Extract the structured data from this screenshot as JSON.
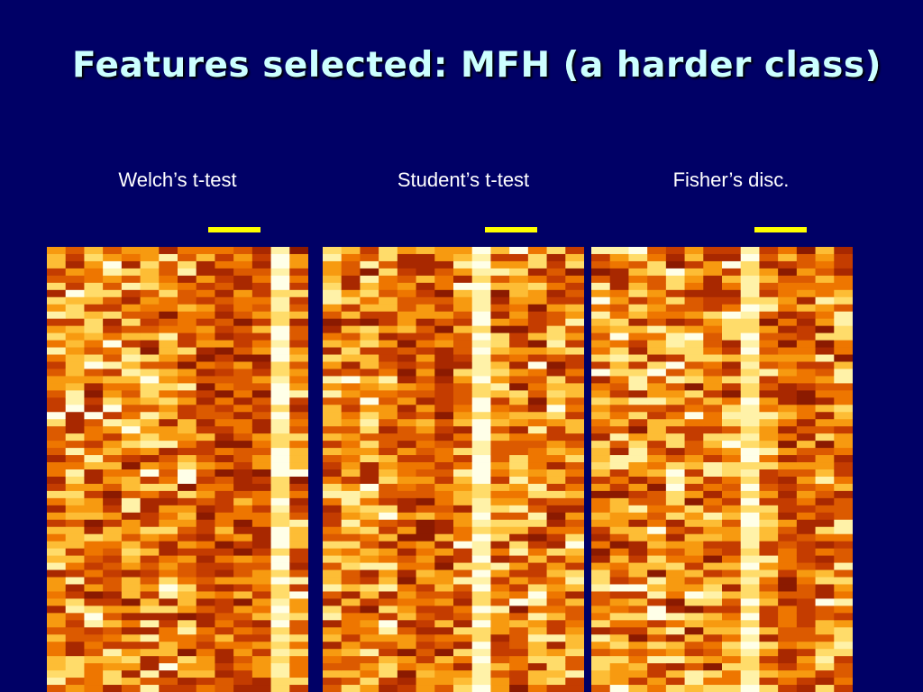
{
  "slide": {
    "title": "Features selected: MFH (a harder class)"
  },
  "colors": {
    "background": "#000066",
    "title": "#ccffff",
    "marker": "#ffff00",
    "heat_low": "#8b1a00",
    "heat_high": "#ffffe8"
  },
  "panels": [
    {
      "label": "Welch’s t-test",
      "bright_column": 12,
      "dark_columns": [
        8,
        9,
        10,
        11
      ]
    },
    {
      "label": "Student’s t-test",
      "bright_column": 8,
      "dark_columns": [
        4,
        5,
        6
      ]
    },
    {
      "label": "Fisher’s disc.",
      "bright_column": 8,
      "dark_columns": [
        10,
        11
      ]
    }
  ],
  "heatmap": {
    "columns": 14,
    "rows": 62,
    "colormap": "hot"
  }
}
